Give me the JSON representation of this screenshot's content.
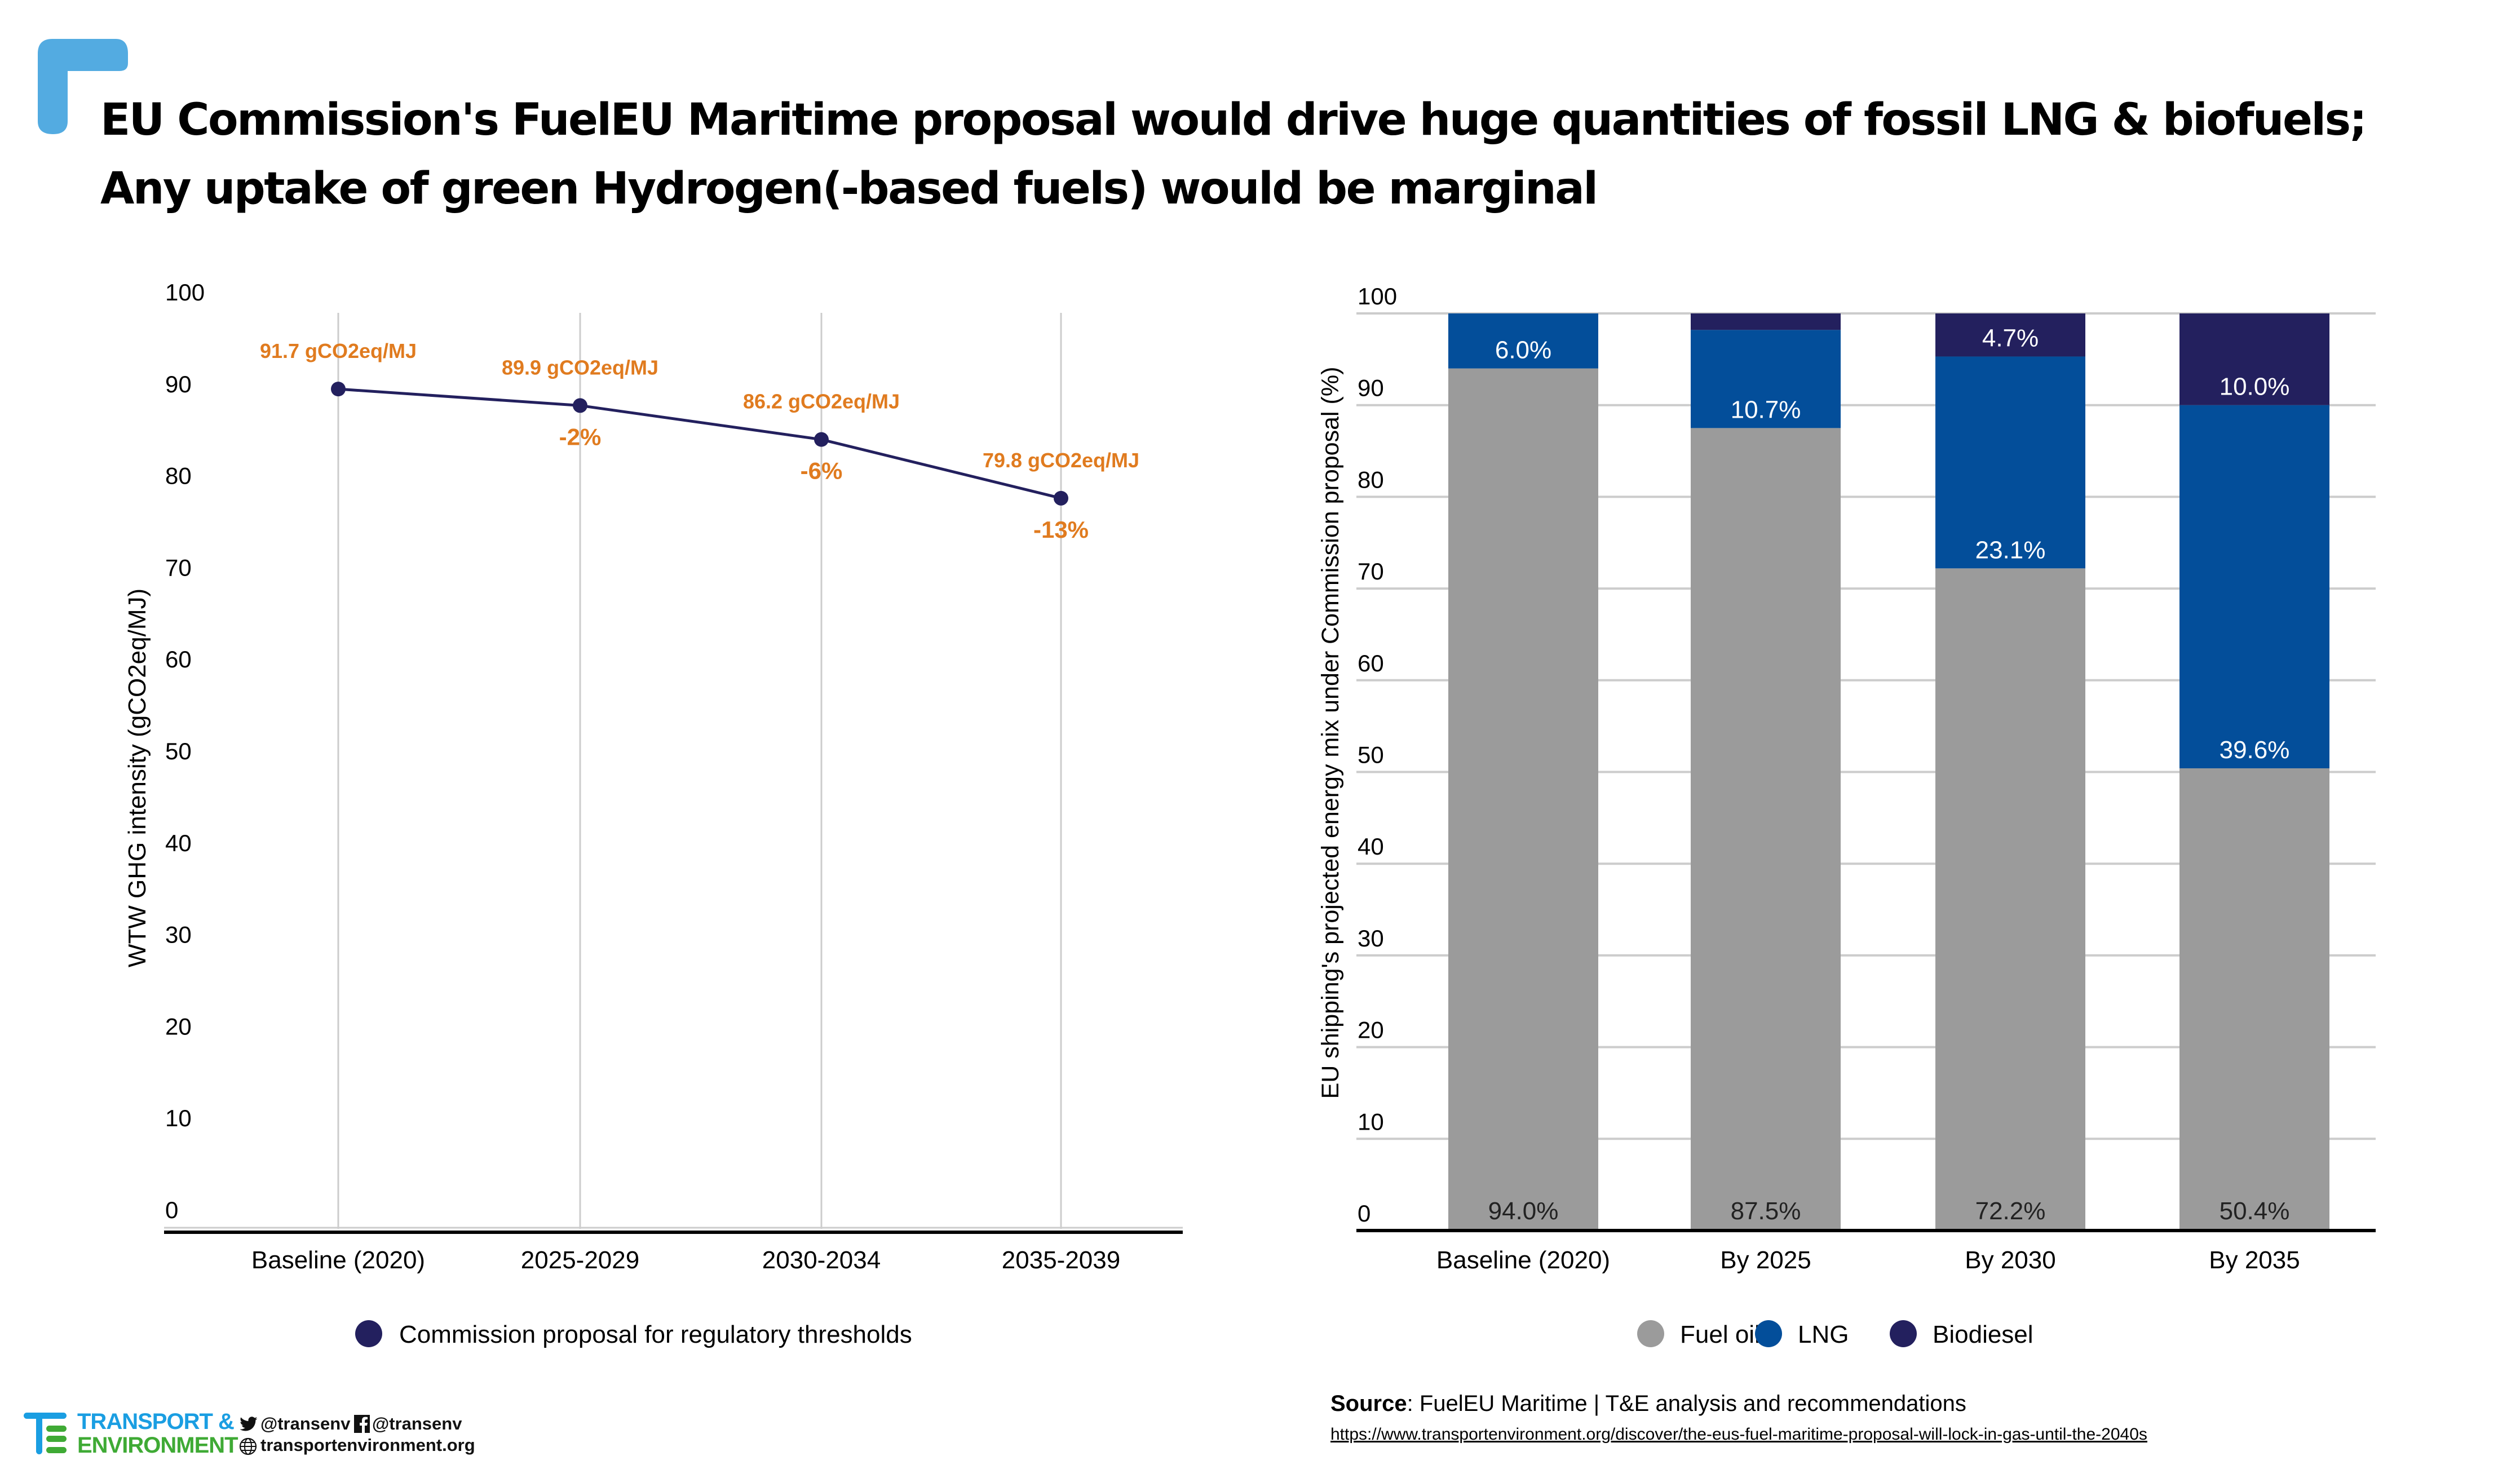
{
  "title": {
    "line1": "EU Commission's FuelEU Maritime proposal would drive huge quantities of fossil LNG & biofuels;",
    "line2": "Any uptake of green Hydrogen(-based fuels) would be marginal"
  },
  "colors": {
    "accent_corner": "#53abe1",
    "line_series": "#23205e",
    "annotation": "#e07b1f",
    "fuel_oil": "#9b9b9b",
    "lng": "#034e9a",
    "biodiesel": "#23205e",
    "gridline": "#cccccc",
    "axis": "#000000"
  },
  "chart_data": [
    {
      "type": "line",
      "title": "",
      "xlabel": "",
      "ylabel": "WTW GHG intensity (gCO2eq/MJ)",
      "ylim": [
        0,
        100
      ],
      "yticks": [
        "0",
        "10",
        "20",
        "30",
        "40",
        "50",
        "60",
        "70",
        "80",
        "90",
        "100"
      ],
      "categories": [
        "Baseline (2020)",
        "2025-2029",
        "2030-2034",
        "2035-2039"
      ],
      "grid": "vertical",
      "legend_position": "bottom",
      "series": [
        {
          "name": "Commission proposal for regulatory thresholds",
          "values": [
            91.7,
            89.9,
            86.2,
            79.8
          ]
        }
      ],
      "value_labels": [
        "91.7 gCO2eq/MJ",
        "89.9 gCO2eq/MJ",
        "86.2 gCO2eq/MJ",
        "79.8 gCO2eq/MJ"
      ],
      "change_labels": [
        "",
        "-2%",
        "-6%",
        "-13%"
      ]
    },
    {
      "type": "bar",
      "stacked": true,
      "title": "",
      "xlabel": "",
      "ylabel": "EU shipping's projected energy mix under Commission proposal (%)",
      "ylim": [
        0,
        100
      ],
      "yticks": [
        "0",
        "10",
        "20",
        "30",
        "40",
        "50",
        "60",
        "70",
        "80",
        "90",
        "100"
      ],
      "categories": [
        "Baseline (2020)",
        "By 2025",
        "By 2030",
        "By 2035"
      ],
      "grid": "horizontal",
      "legend_position": "bottom",
      "series": [
        {
          "name": "Fuel oil",
          "values": [
            94.0,
            87.5,
            72.2,
            50.4
          ],
          "labels": [
            "94.0%",
            "87.5%",
            "72.2%",
            "50.4%"
          ]
        },
        {
          "name": "LNG",
          "values": [
            6.0,
            10.7,
            23.1,
            39.6
          ],
          "labels": [
            "6.0%",
            "10.7%",
            "23.1%",
            "39.6%"
          ]
        },
        {
          "name": "Biodiesel",
          "values": [
            0.0,
            1.8,
            4.7,
            10.0
          ],
          "labels": [
            "",
            "",
            "4.7%",
            "10.0%"
          ]
        }
      ]
    }
  ],
  "footer": {
    "source_label": "Source",
    "source_text": ": FuelEU Maritime | T&E analysis and recommendations",
    "source_url": "https://www.transportenvironment.org/discover/the-eus-fuel-maritime-proposal-will-lock-in-gas-until-the-2040s",
    "logo_line1": "TRANSPORT &",
    "logo_line2": "ENVIRONMENT",
    "twitter_handle": "@transenv",
    "facebook_handle": "@transenv",
    "website": "transportenvironment.org",
    "icons": [
      "twitter-icon",
      "facebook-icon",
      "globe-icon"
    ]
  }
}
